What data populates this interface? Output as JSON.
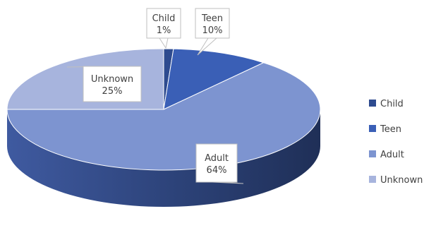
{
  "chart_data": {
    "type": "pie",
    "title": "",
    "categories": [
      "Child",
      "Teen",
      "Adult",
      "Unknown"
    ],
    "values": [
      1,
      10,
      64,
      25
    ],
    "data_labels": [
      {
        "name": "Child",
        "percent": "1%"
      },
      {
        "name": "Teen",
        "percent": "10%"
      },
      {
        "name": "Adult",
        "percent": "64%"
      },
      {
        "name": "Unknown",
        "percent": "25%"
      }
    ],
    "colors": [
      "#2e4b8f",
      "#3a5fb6",
      "#7d94d0",
      "#a7b4dd"
    ],
    "legend": {
      "position": "right",
      "items": [
        "Child",
        "Teen",
        "Adult",
        "Unknown"
      ]
    },
    "style": "3d"
  }
}
